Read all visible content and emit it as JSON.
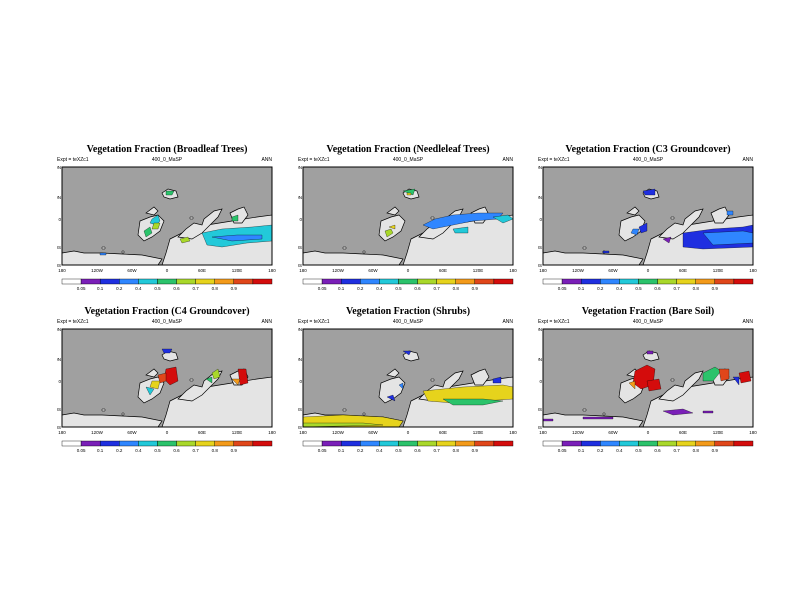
{
  "figure": {
    "panels": [
      {
        "title": "Vegetation Fraction (Broadleaf Trees)",
        "expt": "Expt = teXZc1",
        "run": "400_0_MaSP",
        "season": "ANN"
      },
      {
        "title": "Vegetation Fraction (Needleleaf Trees)",
        "expt": "Expt = teXZc1",
        "run": "400_0_MaSP",
        "season": "ANN"
      },
      {
        "title": "Vegetation Fraction (C3 Groundcover)",
        "expt": "Expt = teXZc1",
        "run": "400_0_MaSP",
        "season": "ANN"
      },
      {
        "title": "Vegetation Fraction (C4 Groundcover)",
        "expt": "Expt = teXZc1",
        "run": "400_0_MaSP",
        "season": "ANN"
      },
      {
        "title": "Vegetation Fraction (Shrubs)",
        "expt": "Expt = teXZc1",
        "run": "400_0_MaSP",
        "season": "ANN"
      },
      {
        "title": "Vegetation Fraction (Bare Soil)",
        "expt": "Expt = teXZc1",
        "run": "400_0_MaSP",
        "season": "ANN"
      }
    ],
    "lat_labels": [
      "80N",
      "40N",
      "0",
      "40S",
      "80S"
    ],
    "lon_labels": [
      "180",
      "120W",
      "60W",
      "0",
      "60E",
      "120E",
      "180"
    ],
    "colorbar": {
      "labels": [
        "0.05",
        "0.1",
        "0.2",
        "0.4",
        "0.5",
        "0.6",
        "0.7",
        "0.8",
        "0.9"
      ],
      "colors": [
        "#ffffff",
        "#7a1fb8",
        "#1f2fe0",
        "#2f86ff",
        "#22c9d9",
        "#2bc36b",
        "#a9d82a",
        "#e6d31c",
        "#f39a1a",
        "#e0461a",
        "#d40c0c"
      ]
    },
    "colors": {
      "ocean": "#a0a0a0",
      "land_missing": "#e4e4e4"
    }
  }
}
